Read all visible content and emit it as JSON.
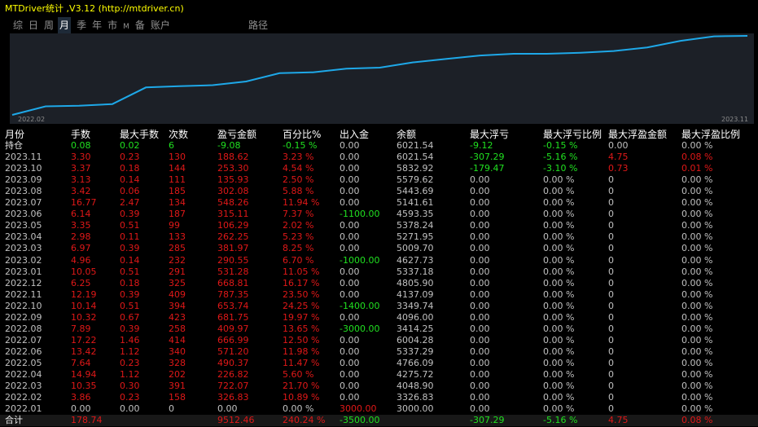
{
  "window": {
    "title": "MTDriver统计 ,V3.12 (http://mtdriver.cn)"
  },
  "tabs": [
    {
      "label": "综"
    },
    {
      "label": "日"
    },
    {
      "label": "周"
    },
    {
      "label": "月",
      "active": true
    },
    {
      "label": "季"
    },
    {
      "label": "年"
    },
    {
      "label": "市"
    },
    {
      "label": "M",
      "small": true
    },
    {
      "label": "备"
    },
    {
      "label": "账户"
    }
  ],
  "tab_path": "路径",
  "colors": {
    "line": "#1ea8e8",
    "chart_bg": "#1c2027",
    "profit": "#e01818",
    "loss": "#20e020",
    "title": "#ffff00"
  },
  "chart_data": {
    "type": "line",
    "x_start_label": "2022.02",
    "x_end_label": "2023.11",
    "series": [
      {
        "values": [
          3000.0,
          3326.83,
          4048.9,
          4275.72,
          4766.09,
          5337.29,
          6004.28,
          3414.25,
          4096.0,
          3349.74,
          4137.09,
          4805.9,
          5337.18,
          4627.73,
          5009.7,
          5271.95,
          5378.24,
          4593.35,
          5141.61,
          5443.69,
          5579.62,
          5832.92,
          6021.54
        ]
      }
    ]
  },
  "table": {
    "headers": [
      "月份",
      "手数",
      "最大手数",
      "次数",
      "盈亏金额",
      "百分比%",
      "出入金",
      "余额",
      "最大浮亏",
      "最大浮亏比例",
      "最大浮盈金额",
      "最大浮盈比例"
    ],
    "rows": [
      {
        "cells": [
          "持仓",
          "0.08",
          "0.02",
          "6",
          "-9.08",
          "-0.15 %",
          "0.00",
          "6021.54",
          "-9.12",
          "-0.15 %",
          "0.00",
          "0.00 %"
        ],
        "colors": [
          "white",
          "green",
          "green",
          "green",
          "green",
          "green",
          "gray",
          "gray",
          "green",
          "green",
          "gray",
          "gray"
        ]
      },
      {
        "cells": [
          "2023.11",
          "3.30",
          "0.23",
          "130",
          "188.62",
          "3.23 %",
          "0.00",
          "6021.54",
          "-307.29",
          "-5.16 %",
          "4.75",
          "0.08 %"
        ],
        "colors": [
          "gray",
          "red",
          "red",
          "red",
          "red",
          "red",
          "gray",
          "gray",
          "green",
          "green",
          "red",
          "red"
        ]
      },
      {
        "cells": [
          "2023.10",
          "3.37",
          "0.18",
          "144",
          "253.30",
          "4.54 %",
          "0.00",
          "5832.92",
          "-179.47",
          "-3.10 %",
          "0.73",
          "0.01 %"
        ],
        "colors": [
          "gray",
          "red",
          "red",
          "red",
          "red",
          "red",
          "gray",
          "gray",
          "green",
          "green",
          "red",
          "red"
        ]
      },
      {
        "cells": [
          "2023.09",
          "3.13",
          "0.14",
          "111",
          "135.93",
          "2.50 %",
          "0.00",
          "5579.62",
          "0.00",
          "0.00 %",
          "0",
          "0.00 %"
        ],
        "colors": [
          "gray",
          "red",
          "red",
          "red",
          "red",
          "red",
          "gray",
          "gray",
          "gray",
          "gray",
          "gray",
          "gray"
        ]
      },
      {
        "cells": [
          "2023.08",
          "3.42",
          "0.06",
          "185",
          "302.08",
          "5.88 %",
          "0.00",
          "5443.69",
          "0.00",
          "0.00 %",
          "0",
          "0.00 %"
        ],
        "colors": [
          "gray",
          "red",
          "red",
          "red",
          "red",
          "red",
          "gray",
          "gray",
          "gray",
          "gray",
          "gray",
          "gray"
        ]
      },
      {
        "cells": [
          "2023.07",
          "16.77",
          "2.47",
          "134",
          "548.26",
          "11.94 %",
          "0.00",
          "5141.61",
          "0.00",
          "0.00 %",
          "0",
          "0.00 %"
        ],
        "colors": [
          "gray",
          "red",
          "red",
          "red",
          "red",
          "red",
          "gray",
          "gray",
          "gray",
          "gray",
          "gray",
          "gray"
        ]
      },
      {
        "cells": [
          "2023.06",
          "6.14",
          "0.39",
          "187",
          "315.11",
          "7.37 %",
          "-1100.00",
          "4593.35",
          "0.00",
          "0.00 %",
          "0",
          "0.00 %"
        ],
        "colors": [
          "gray",
          "red",
          "red",
          "red",
          "red",
          "red",
          "green",
          "gray",
          "gray",
          "gray",
          "gray",
          "gray"
        ]
      },
      {
        "cells": [
          "2023.05",
          "3.35",
          "0.51",
          "99",
          "106.29",
          "2.02 %",
          "0.00",
          "5378.24",
          "0.00",
          "0.00 %",
          "0",
          "0.00 %"
        ],
        "colors": [
          "gray",
          "red",
          "red",
          "red",
          "red",
          "red",
          "gray",
          "gray",
          "gray",
          "gray",
          "gray",
          "gray"
        ]
      },
      {
        "cells": [
          "2023.04",
          "2.98",
          "0.11",
          "133",
          "262.25",
          "5.23 %",
          "0.00",
          "5271.95",
          "0.00",
          "0.00 %",
          "0",
          "0.00 %"
        ],
        "colors": [
          "gray",
          "red",
          "red",
          "red",
          "red",
          "red",
          "gray",
          "gray",
          "gray",
          "gray",
          "gray",
          "gray"
        ]
      },
      {
        "cells": [
          "2023.03",
          "6.97",
          "0.39",
          "285",
          "381.97",
          "8.25 %",
          "0.00",
          "5009.70",
          "0.00",
          "0.00 %",
          "0",
          "0.00 %"
        ],
        "colors": [
          "gray",
          "red",
          "red",
          "red",
          "red",
          "red",
          "gray",
          "gray",
          "gray",
          "gray",
          "gray",
          "gray"
        ]
      },
      {
        "cells": [
          "2023.02",
          "4.96",
          "0.14",
          "232",
          "290.55",
          "6.70 %",
          "-1000.00",
          "4627.73",
          "0.00",
          "0.00 %",
          "0",
          "0.00 %"
        ],
        "colors": [
          "gray",
          "red",
          "red",
          "red",
          "red",
          "red",
          "green",
          "gray",
          "gray",
          "gray",
          "gray",
          "gray"
        ]
      },
      {
        "cells": [
          "2023.01",
          "10.05",
          "0.51",
          "291",
          "531.28",
          "11.05 %",
          "0.00",
          "5337.18",
          "0.00",
          "0.00 %",
          "0",
          "0.00 %"
        ],
        "colors": [
          "gray",
          "red",
          "red",
          "red",
          "red",
          "red",
          "gray",
          "gray",
          "gray",
          "gray",
          "gray",
          "gray"
        ]
      },
      {
        "cells": [
          "2022.12",
          "6.25",
          "0.18",
          "325",
          "668.81",
          "16.17 %",
          "0.00",
          "4805.90",
          "0.00",
          "0.00 %",
          "0",
          "0.00 %"
        ],
        "colors": [
          "gray",
          "red",
          "red",
          "red",
          "red",
          "red",
          "gray",
          "gray",
          "gray",
          "gray",
          "gray",
          "gray"
        ]
      },
      {
        "cells": [
          "2022.11",
          "12.19",
          "0.39",
          "409",
          "787.35",
          "23.50 %",
          "0.00",
          "4137.09",
          "0.00",
          "0.00 %",
          "0",
          "0.00 %"
        ],
        "colors": [
          "gray",
          "red",
          "red",
          "red",
          "red",
          "red",
          "gray",
          "gray",
          "gray",
          "gray",
          "gray",
          "gray"
        ]
      },
      {
        "cells": [
          "2022.10",
          "10.14",
          "0.51",
          "394",
          "653.74",
          "24.25 %",
          "-1400.00",
          "3349.74",
          "0.00",
          "0.00 %",
          "0",
          "0.00 %"
        ],
        "colors": [
          "gray",
          "red",
          "red",
          "red",
          "red",
          "red",
          "green",
          "gray",
          "gray",
          "gray",
          "gray",
          "gray"
        ]
      },
      {
        "cells": [
          "2022.09",
          "10.32",
          "0.67",
          "423",
          "681.75",
          "19.97 %",
          "0.00",
          "4096.00",
          "0.00",
          "0.00 %",
          "0",
          "0.00 %"
        ],
        "colors": [
          "gray",
          "red",
          "red",
          "red",
          "red",
          "red",
          "gray",
          "gray",
          "gray",
          "gray",
          "gray",
          "gray"
        ]
      },
      {
        "cells": [
          "2022.08",
          "7.89",
          "0.39",
          "258",
          "409.97",
          "13.65 %",
          "-3000.00",
          "3414.25",
          "0.00",
          "0.00 %",
          "0",
          "0.00 %"
        ],
        "colors": [
          "gray",
          "red",
          "red",
          "red",
          "red",
          "red",
          "green",
          "gray",
          "gray",
          "gray",
          "gray",
          "gray"
        ]
      },
      {
        "cells": [
          "2022.07",
          "17.22",
          "1.46",
          "414",
          "666.99",
          "12.50 %",
          "0.00",
          "6004.28",
          "0.00",
          "0.00 %",
          "0",
          "0.00 %"
        ],
        "colors": [
          "gray",
          "red",
          "red",
          "red",
          "red",
          "red",
          "gray",
          "gray",
          "gray",
          "gray",
          "gray",
          "gray"
        ]
      },
      {
        "cells": [
          "2022.06",
          "13.42",
          "1.12",
          "340",
          "571.20",
          "11.98 %",
          "0.00",
          "5337.29",
          "0.00",
          "0.00 %",
          "0",
          "0.00 %"
        ],
        "colors": [
          "gray",
          "red",
          "red",
          "red",
          "red",
          "red",
          "gray",
          "gray",
          "gray",
          "gray",
          "gray",
          "gray"
        ]
      },
      {
        "cells": [
          "2022.05",
          "7.64",
          "0.23",
          "328",
          "490.37",
          "11.47 %",
          "0.00",
          "4766.09",
          "0.00",
          "0.00 %",
          "0",
          "0.00 %"
        ],
        "colors": [
          "gray",
          "red",
          "red",
          "red",
          "red",
          "red",
          "gray",
          "gray",
          "gray",
          "gray",
          "gray",
          "gray"
        ]
      },
      {
        "cells": [
          "2022.04",
          "14.94",
          "1.12",
          "202",
          "226.82",
          "5.60 %",
          "0.00",
          "4275.72",
          "0.00",
          "0.00 %",
          "0",
          "0.00 %"
        ],
        "colors": [
          "gray",
          "red",
          "red",
          "red",
          "red",
          "red",
          "gray",
          "gray",
          "gray",
          "gray",
          "gray",
          "gray"
        ]
      },
      {
        "cells": [
          "2022.03",
          "10.35",
          "0.30",
          "391",
          "722.07",
          "21.70 %",
          "0.00",
          "4048.90",
          "0.00",
          "0.00 %",
          "0",
          "0.00 %"
        ],
        "colors": [
          "gray",
          "red",
          "red",
          "red",
          "red",
          "red",
          "gray",
          "gray",
          "gray",
          "gray",
          "gray",
          "gray"
        ]
      },
      {
        "cells": [
          "2022.02",
          "3.86",
          "0.23",
          "158",
          "326.83",
          "10.89 %",
          "0.00",
          "3326.83",
          "0.00",
          "0.00 %",
          "0",
          "0.00 %"
        ],
        "colors": [
          "gray",
          "red",
          "red",
          "red",
          "red",
          "red",
          "gray",
          "gray",
          "gray",
          "gray",
          "gray",
          "gray"
        ]
      },
      {
        "cells": [
          "2022.01",
          "0.00",
          "0.00",
          "0",
          "0.00",
          "0.00 %",
          "3000.00",
          "3000.00",
          "0.00",
          "0.00 %",
          "0",
          "0.00 %"
        ],
        "colors": [
          "gray",
          "gray",
          "gray",
          "gray",
          "gray",
          "gray",
          "red",
          "gray",
          "gray",
          "gray",
          "gray",
          "gray"
        ]
      }
    ],
    "total": {
      "cells": [
        "合计",
        "178.74",
        "",
        "",
        "9512.46",
        "240.24 %",
        "-3500.00",
        "",
        "-307.29",
        "-5.16 %",
        "4.75",
        "0.08 %"
      ],
      "colors": [
        "white",
        "red",
        "gray",
        "gray",
        "red",
        "red",
        "green",
        "gray",
        "green",
        "green",
        "red",
        "red"
      ]
    }
  }
}
